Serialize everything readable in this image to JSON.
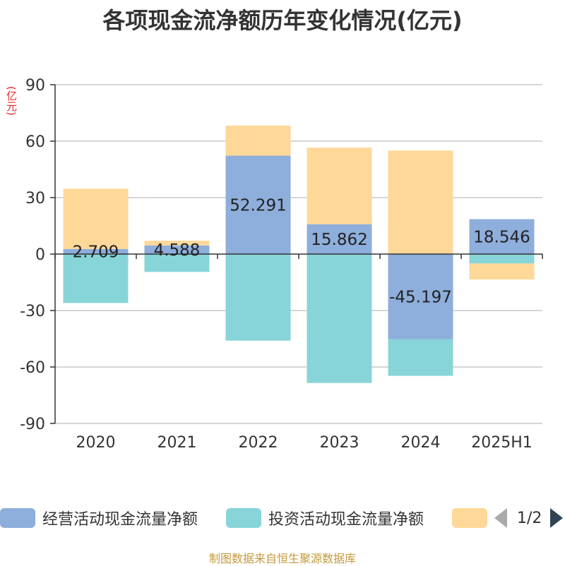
{
  "title": "各项现金流净额历年变化情况(亿元)",
  "unit_label": "(亿元)",
  "legend": {
    "items": [
      {
        "label": "经营活动现金流量净额",
        "color": "#8eaedb"
      },
      {
        "label": "投资活动现金流量净额",
        "color": "#87d5d8"
      },
      {
        "label": "",
        "color": "#fed899"
      }
    ],
    "page": "1/2"
  },
  "footer": "制图数据来自恒生聚源数据库",
  "chart_data": {
    "type": "bar",
    "stacked": true,
    "title": "各项现金流净额历年变化情况(亿元)",
    "ylabel": "(亿元)",
    "categories": [
      "2020",
      "2021",
      "2022",
      "2023",
      "2024",
      "2025H1"
    ],
    "ylim": [
      -90,
      90
    ],
    "yticks": [
      90,
      60,
      30,
      0,
      -30,
      -60,
      -90
    ],
    "grid": true,
    "legend_position": "bottom",
    "series": [
      {
        "name": "经营活动现金流量净额",
        "color": "#8eaedb",
        "values": [
          2.709,
          4.588,
          52.291,
          15.862,
          -45.197,
          18.546
        ],
        "show_labels": true
      },
      {
        "name": "投资活动现金流量净额",
        "color": "#87d5d8",
        "values": [
          -26,
          -9.5,
          -46,
          -68.5,
          -19.5,
          -5
        ]
      },
      {
        "name": "",
        "color": "#fed899",
        "values": [
          32,
          2.5,
          16,
          40.7,
          55,
          -8.5
        ]
      }
    ]
  }
}
